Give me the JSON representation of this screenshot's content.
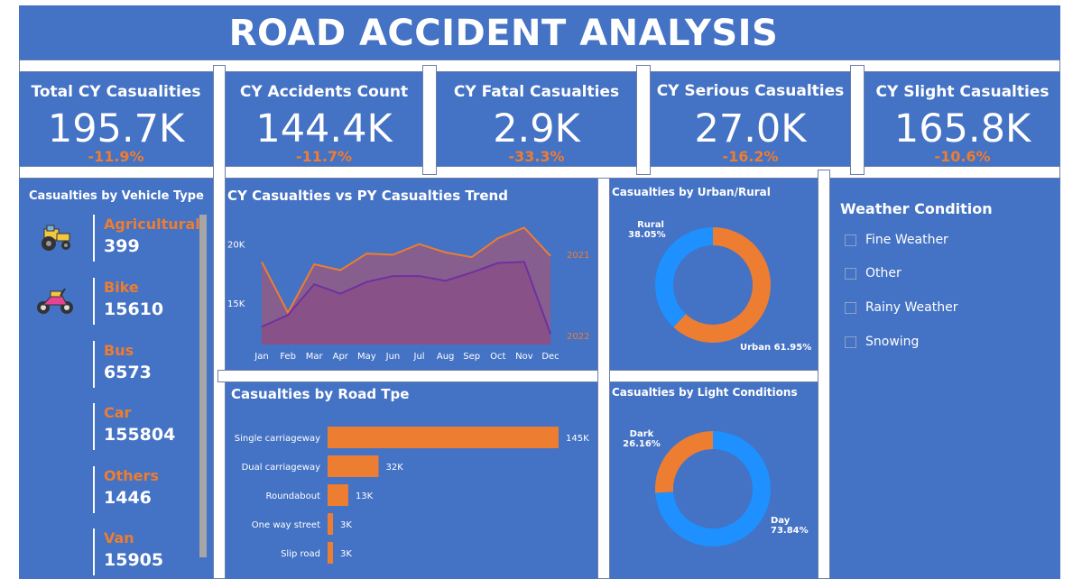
{
  "header": {
    "title": "ROAD ACCIDENT ANALYSIS"
  },
  "kpis": [
    {
      "label": "Total CY Casualities",
      "value": "195.7K",
      "change": "-11.9%"
    },
    {
      "label": "CY Accidents Count",
      "value": "144.4K",
      "change": "-11.7%"
    },
    {
      "label": "CY Fatal Casualties",
      "value": "2.9K",
      "change": "-33.3%"
    },
    {
      "label": "CY Serious Casualties",
      "value": "27.0K",
      "change": "-16.2%"
    },
    {
      "label": "CY Slight Casualties",
      "value": "165.8K",
      "change": "-10.6%"
    }
  ],
  "vehicle": {
    "title": "Casualties by Vehicle Type",
    "items": [
      {
        "name": "Agricultural",
        "value": "399",
        "icon": "tractor-icon"
      },
      {
        "name": "Bike",
        "value": "15610",
        "icon": "motorbike-icon"
      },
      {
        "name": "Bus",
        "value": "6573"
      },
      {
        "name": "Car",
        "value": "155804"
      },
      {
        "name": "Others",
        "value": "1446"
      },
      {
        "name": "Van",
        "value": "15905"
      }
    ]
  },
  "trend": {
    "title": "CY Casualties vs PY Casualties Trend",
    "y_ticks": [
      "20K",
      "15K"
    ],
    "series_labels": [
      "2021",
      "2022"
    ]
  },
  "road": {
    "title": "Casualties by Road Tpe"
  },
  "urban": {
    "title": "Casualties by Urban/Rural",
    "labels": [
      {
        "name": "Rural",
        "pct": "38.05%"
      },
      {
        "name": "Urban",
        "pct": "61.95%"
      }
    ]
  },
  "light": {
    "title": "Casualties by Light Conditions",
    "labels": [
      {
        "name": "Dark",
        "pct": "26.16%"
      },
      {
        "name": "Day",
        "pct": "73.84%"
      }
    ]
  },
  "weather": {
    "title": "Weather Condition",
    "options": [
      "Fine Weather",
      "Other",
      "Rainy Weather",
      "Snowing"
    ]
  },
  "colors": {
    "panel": "#4472c4",
    "accent": "#ed7d31",
    "blue": "#1e90ff",
    "purple": "#7030a0"
  },
  "chart_data": [
    {
      "type": "area",
      "title": "CY Casualties vs PY Casualties Trend",
      "categories": [
        "Jan",
        "Feb",
        "Mar",
        "Apr",
        "May",
        "Jun",
        "Jul",
        "Aug",
        "Sep",
        "Oct",
        "Nov",
        "Dec"
      ],
      "series": [
        {
          "name": "2021",
          "values": [
            18500,
            14200,
            18300,
            17800,
            19200,
            19100,
            20000,
            19300,
            18900,
            20500,
            21400,
            19000
          ]
        },
        {
          "name": "2022",
          "values": [
            13000,
            14000,
            16600,
            15800,
            16800,
            17300,
            17300,
            16900,
            17600,
            18400,
            18500,
            12400
          ]
        }
      ],
      "y_ticks": [
        15000,
        20000
      ],
      "ylim": [
        11500,
        22500
      ]
    },
    {
      "type": "bar",
      "title": "Casualties by Road Tpe",
      "categories": [
        "Single carriageway",
        "Dual carriageway",
        "Roundabout",
        "One way street",
        "Slip road"
      ],
      "values": [
        145,
        32,
        13,
        3,
        3
      ],
      "value_labels": [
        "145K",
        "32K",
        "13K",
        "3K",
        "3K"
      ]
    },
    {
      "type": "pie",
      "title": "Casualties by Urban/Rural",
      "categories": [
        "Urban",
        "Rural"
      ],
      "values": [
        61.95,
        38.05
      ]
    },
    {
      "type": "pie",
      "title": "Casualties by Light Conditions",
      "categories": [
        "Day",
        "Dark"
      ],
      "values": [
        73.84,
        26.16
      ]
    }
  ]
}
